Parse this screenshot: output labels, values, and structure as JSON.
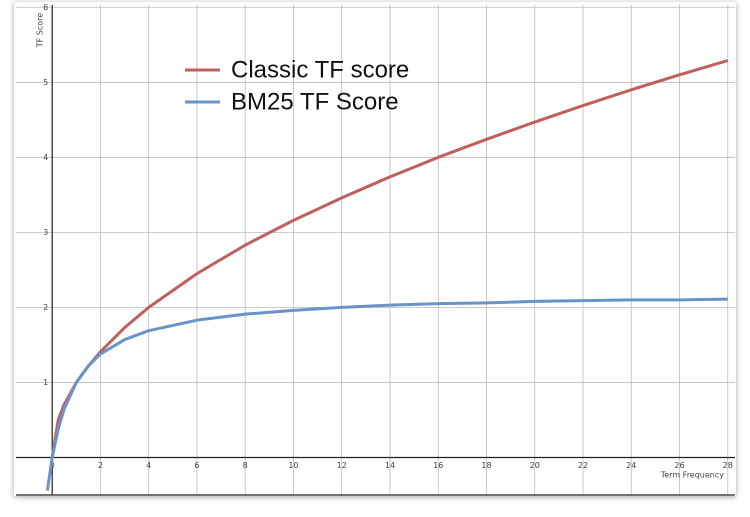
{
  "chart_data": {
    "type": "line",
    "x_label": "Term Frequency",
    "y_label": "TF Score",
    "x": [
      -0.2,
      0,
      0.25,
      0.5,
      1,
      1.5,
      2,
      3,
      4,
      6,
      8,
      10,
      12,
      14,
      16,
      18,
      20,
      22,
      24,
      26,
      28
    ],
    "series": [
      {
        "name": "Classic TF score",
        "color": "#c0605d",
        "values": [
          null,
          0,
          0.5,
          0.71,
          1,
          1.22,
          1.41,
          1.73,
          2,
          2.45,
          2.83,
          3.16,
          3.46,
          3.74,
          4,
          4.24,
          4.47,
          4.69,
          4.9,
          5.1,
          5.29
        ]
      },
      {
        "name": "BM25 TF Score",
        "color": "#6a93c8",
        "values": [
          -0.44,
          0,
          0.38,
          0.65,
          1,
          1.22,
          1.38,
          1.57,
          1.69,
          1.83,
          1.91,
          1.96,
          2.0,
          2.03,
          2.05,
          2.06,
          2.08,
          2.09,
          2.1,
          2.1,
          2.11
        ]
      }
    ],
    "xlim": [
      -1.5,
      28.3
    ],
    "ylim": [
      -0.5,
      6.03
    ],
    "xticks": [
      0,
      2,
      4,
      6,
      8,
      10,
      12,
      14,
      16,
      18,
      20,
      22,
      24,
      26,
      28
    ],
    "yticks": [
      1,
      2,
      3,
      4,
      5,
      6
    ],
    "grid": true
  }
}
